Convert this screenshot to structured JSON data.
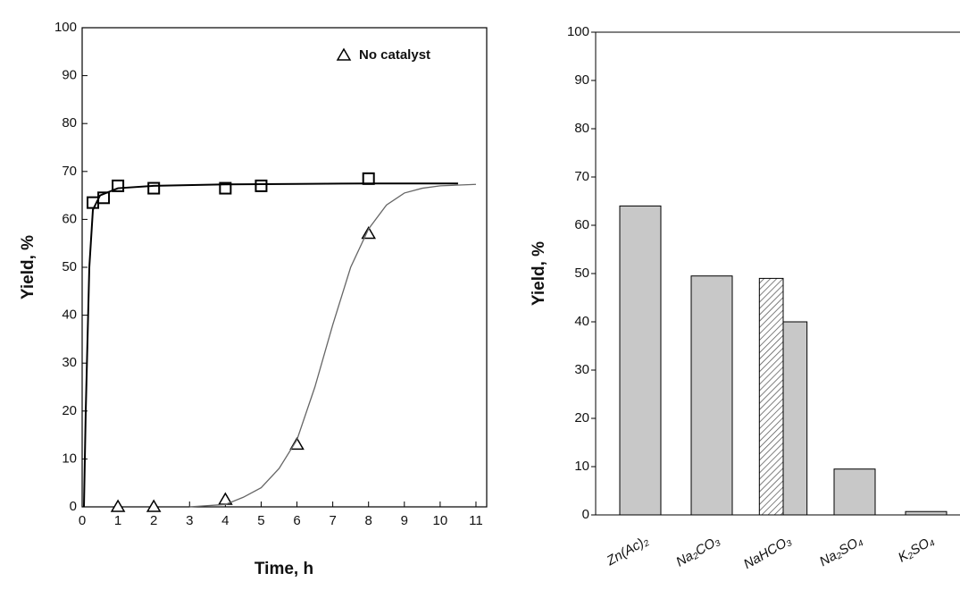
{
  "chart_data": [
    {
      "type": "scatter",
      "xlabel": "Time, h",
      "ylabel": "Yield, %",
      "xlim": [
        0,
        11.3
      ],
      "ylim": [
        0,
        100
      ],
      "xticks": [
        0,
        1,
        2,
        3,
        4,
        5,
        6,
        7,
        8,
        9,
        10,
        11
      ],
      "yticks": [
        0,
        10,
        20,
        30,
        40,
        50,
        60,
        70,
        80,
        90,
        100
      ],
      "legend": "upper right",
      "color": "#000000",
      "series": [
        {
          "marker": "square",
          "x": [
            0.3,
            0.6,
            1,
            2,
            4,
            5,
            8
          ],
          "values": [
            63.5,
            64.5,
            67,
            66.5,
            66.5,
            67,
            68.5
          ]
        },
        {
          "name": "No catalyst",
          "marker": "triangle",
          "x": [
            1,
            2,
            4,
            6,
            8
          ],
          "values": [
            0,
            0,
            1.5,
            13,
            57
          ]
        },
        {
          "marker": "line",
          "x": [
            0.05,
            0.1,
            0.2,
            0.3,
            0.5,
            1,
            2,
            4,
            6,
            8,
            10.5
          ],
          "values": [
            0,
            20,
            50,
            62,
            65,
            66.5,
            67,
            67.3,
            67.4,
            67.5,
            67.5
          ]
        },
        {
          "marker": "line",
          "x": [
            3,
            4,
            4.5,
            5,
            5.5,
            6,
            6.5,
            7,
            7.5,
            8,
            8.5,
            9,
            9.5,
            10,
            11
          ],
          "values": [
            0,
            0.5,
            2,
            4,
            8,
            14,
            25,
            38,
            50,
            58,
            63,
            65.5,
            66.5,
            67,
            67.3
          ]
        }
      ]
    },
    {
      "type": "bar",
      "ylabel": "Yield, %",
      "ylim": [
        0,
        100
      ],
      "yticks": [
        0,
        10,
        20,
        30,
        40,
        50,
        60,
        70,
        80,
        90,
        100
      ],
      "categories": [
        "Zn(Ac)₂",
        "Na₂CO₃",
        "NaHCO₃",
        "Na₂SO₄",
        "K₂SO₄"
      ],
      "series": [
        {
          "fill": "hatch",
          "color": "#555555",
          "values": [
            null,
            null,
            49,
            null,
            null
          ]
        },
        {
          "fill": "solid",
          "color": "#c8c8c8",
          "values": [
            64,
            49.5,
            40,
            9.5,
            0.7
          ]
        }
      ]
    }
  ]
}
